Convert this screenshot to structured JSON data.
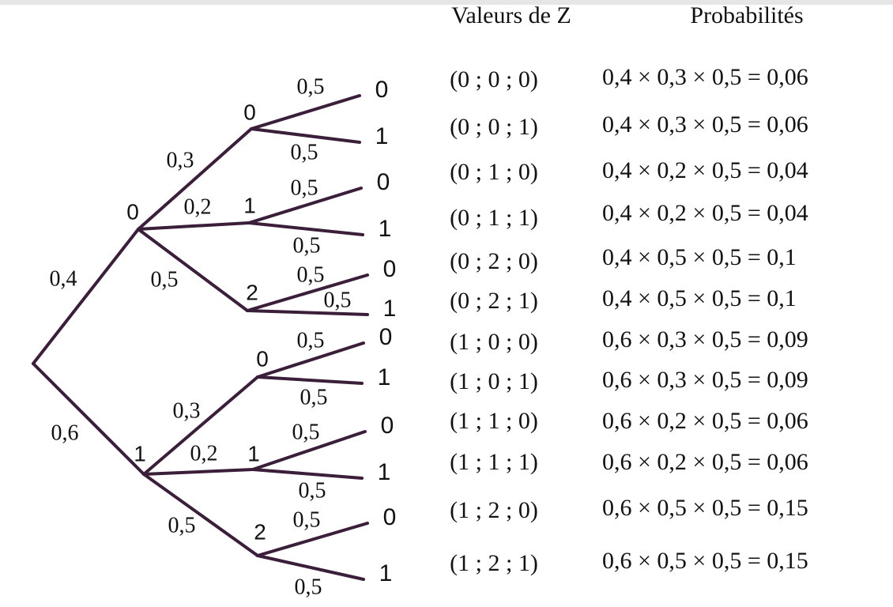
{
  "headers": {
    "outcomes": "Valeurs de Z",
    "probabilities": "Probabilités"
  },
  "tree": {
    "branches": [
      {
        "prob": "0,4",
        "label": "0",
        "children": [
          {
            "prob": "0,3",
            "label": "0",
            "children": [
              {
                "prob": "0,5",
                "label": "0"
              },
              {
                "prob": "0,5",
                "label": "1"
              }
            ]
          },
          {
            "prob": "0,2",
            "label": "1",
            "children": [
              {
                "prob": "0,5",
                "label": "0"
              },
              {
                "prob": "0,5",
                "label": "1"
              }
            ]
          },
          {
            "prob": "0,5",
            "label": "2",
            "children": [
              {
                "prob": "0,5",
                "label": "0"
              },
              {
                "prob": "0,5",
                "label": "1"
              }
            ]
          }
        ]
      },
      {
        "prob": "0,6",
        "label": "1",
        "children": [
          {
            "prob": "0,3",
            "label": "0",
            "children": [
              {
                "prob": "0,5",
                "label": "0"
              },
              {
                "prob": "0,5",
                "label": "1"
              }
            ]
          },
          {
            "prob": "0,2",
            "label": "1",
            "children": [
              {
                "prob": "0,5",
                "label": "0"
              },
              {
                "prob": "0,5",
                "label": "1"
              }
            ]
          },
          {
            "prob": "0,5",
            "label": "2",
            "children": [
              {
                "prob": "0,5",
                "label": "0"
              },
              {
                "prob": "0,5",
                "label": "1"
              }
            ]
          }
        ]
      }
    ]
  },
  "rows": [
    {
      "outcome": "(0 ; 0 ; 0)",
      "formula": "0,4 × 0,3 × 0,5 = 0,06"
    },
    {
      "outcome": "(0 ; 0 ; 1)",
      "formula": "0,4 × 0,3 × 0,5 = 0,06"
    },
    {
      "outcome": "(0 ; 1 ; 0)",
      "formula": "0,4 × 0,2 × 0,5 = 0,04"
    },
    {
      "outcome": "(0 ; 1 ; 1)",
      "formula": "0,4 × 0,2 × 0,5 = 0,04"
    },
    {
      "outcome": "(0 ; 2 ; 0)",
      "formula": "0,4 × 0,5 × 0,5 = 0,1"
    },
    {
      "outcome": "(0 ; 2 ; 1)",
      "formula": "0,4 × 0,5 × 0,5 = 0,1"
    },
    {
      "outcome": "(1 ; 0 ; 0)",
      "formula": "0,6 × 0,3 × 0,5 = 0,09"
    },
    {
      "outcome": "(1 ; 0 ; 1)",
      "formula": "0,6 × 0,3 × 0,5 = 0,09"
    },
    {
      "outcome": "(1 ; 1 ; 0)",
      "formula": "0,6 × 0,2 × 0,5 = 0,06"
    },
    {
      "outcome": "(1 ; 1 ; 1)",
      "formula": "0,6 × 0,2 × 0,5 = 0,06"
    },
    {
      "outcome": "(1 ; 2 ; 0)",
      "formula": "0,6 × 0,5 × 0,5 = 0,15"
    },
    {
      "outcome": "(1 ; 2 ; 1)",
      "formula": "0,6 × 0,5 × 0,5 = 0,15"
    }
  ]
}
